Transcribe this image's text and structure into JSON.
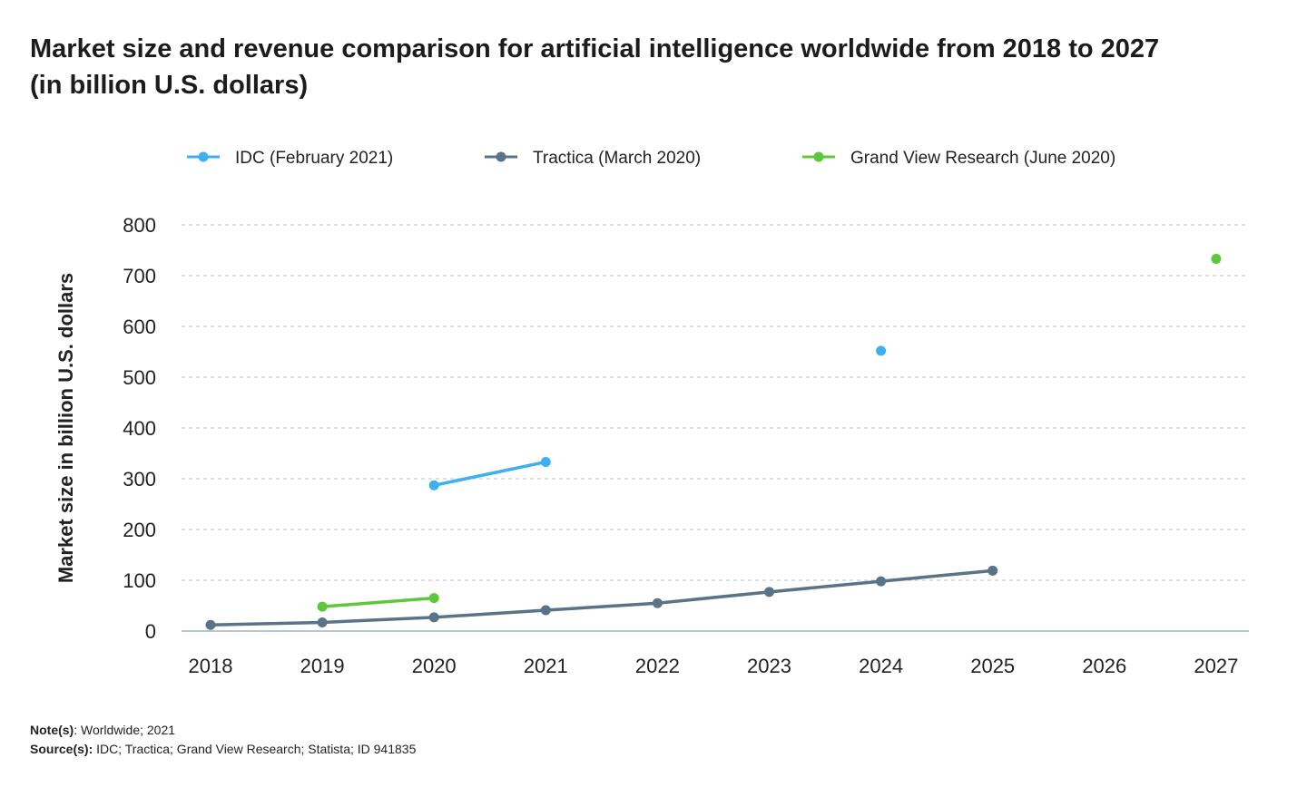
{
  "title": "Market size and revenue comparison for artificial intelligence worldwide from 2018 to 2027 (in billion U.S. dollars)",
  "chart_data": {
    "type": "line",
    "title": "Market size and revenue comparison for artificial intelligence worldwide from 2018 to 2027 (in billion U.S. dollars)",
    "xlabel": "",
    "ylabel": "Market size in billion U.S. dollars",
    "categories": [
      "2018",
      "2019",
      "2020",
      "2021",
      "2022",
      "2023",
      "2024",
      "2025",
      "2026",
      "2027"
    ],
    "ylim": [
      0,
      800
    ],
    "yticks": [
      "0",
      "100",
      "200",
      "300",
      "400",
      "500",
      "600",
      "700",
      "800"
    ],
    "grid": true,
    "legend_position": "top",
    "series": [
      {
        "name": "IDC (February 2021)",
        "color": "#3db0ef",
        "values": [
          null,
          null,
          287,
          333,
          null,
          null,
          552,
          null,
          null,
          null
        ]
      },
      {
        "name": "Tractica (March 2020)",
        "color": "#5a7387",
        "values": [
          12,
          17,
          27,
          41,
          55,
          77,
          98,
          119,
          null,
          null
        ]
      },
      {
        "name": "Grand View Research (June 2020)",
        "color": "#5cc93a",
        "values": [
          null,
          48,
          65,
          null,
          null,
          null,
          null,
          null,
          null,
          733
        ]
      }
    ]
  },
  "notes": {
    "note_label": "Note(s)",
    "note_text": ": Worldwide; 2021",
    "source_label": "Source(s):",
    "source_text": " IDC; Tractica; Grand View Research; Statista; ID 941835"
  }
}
